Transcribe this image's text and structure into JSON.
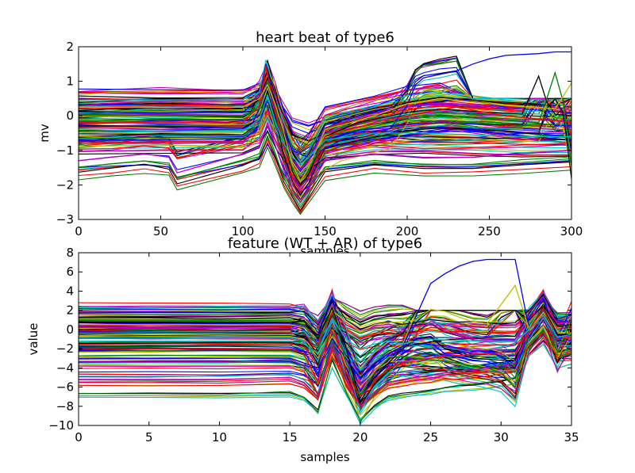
{
  "chart_data": [
    {
      "type": "line",
      "title": "heart beat of type6",
      "xlabel": "samples",
      "ylabel": "mv",
      "xlim": [
        0,
        300
      ],
      "ylim": [
        -3,
        2
      ],
      "xticks": [
        "0",
        "50",
        "100",
        "150",
        "200",
        "250",
        "300"
      ],
      "yticks": [
        "−3",
        "−2",
        "−1",
        "0",
        "1",
        "2"
      ],
      "grid": false,
      "representative_series": [
        {
          "color": "#0000ff",
          "x": [
            0,
            50,
            100,
            105,
            110,
            115,
            120,
            130,
            140,
            160,
            190,
            200,
            205,
            210,
            220,
            230,
            240,
            250,
            260,
            280,
            290,
            300
          ],
          "y": [
            -0.3,
            -0.3,
            -0.35,
            -0.3,
            0.2,
            0.9,
            0.1,
            -1.0,
            -1.2,
            -0.7,
            -0.35,
            0.3,
            0.9,
            1.1,
            1.2,
            1.3,
            1.5,
            1.65,
            1.75,
            1.8,
            1.85,
            1.85
          ]
        },
        {
          "color": "#000000",
          "x": [
            0,
            20,
            50,
            90,
            105,
            110,
            115,
            120,
            125,
            130,
            135,
            140,
            150,
            170,
            200,
            220,
            250,
            270,
            275,
            280,
            285,
            290,
            300
          ],
          "y": [
            0.15,
            0.2,
            0.25,
            0.2,
            0.25,
            0.5,
            1.1,
            0.4,
            -0.6,
            -1.6,
            -2.0,
            -1.7,
            -0.6,
            -0.2,
            0.1,
            0.2,
            0.1,
            0.05,
            0.6,
            1.15,
            0.4,
            0.05,
            0.0
          ]
        },
        {
          "color": "#008000",
          "x": [
            0,
            50,
            100,
            110,
            115,
            120,
            125,
            130,
            135,
            140,
            150,
            180,
            200,
            220,
            250,
            280,
            285,
            290,
            295,
            300
          ],
          "y": [
            0.05,
            0.0,
            0.0,
            0.2,
            1.0,
            0.2,
            -0.8,
            -1.5,
            -1.9,
            -1.6,
            -0.6,
            -0.3,
            -0.1,
            0.0,
            -0.1,
            -0.2,
            0.5,
            1.25,
            0.4,
            -1.45
          ]
        },
        {
          "color": "#ff0000",
          "x": [
            0,
            50,
            100,
            110,
            114,
            118,
            125,
            130,
            135,
            140,
            150,
            180,
            210,
            230,
            260,
            300
          ],
          "y": [
            -0.2,
            -0.2,
            -0.2,
            0.3,
            1.45,
            0.5,
            -0.9,
            -1.8,
            -2.2,
            -1.8,
            -0.6,
            -0.2,
            0.1,
            0.25,
            0.0,
            -0.2
          ]
        },
        {
          "color": "#00bfbf",
          "x": [
            0,
            50,
            100,
            110,
            115,
            120,
            125,
            130,
            135,
            140,
            150,
            180,
            210,
            240,
            270,
            300
          ],
          "y": [
            -0.5,
            -0.45,
            -0.45,
            -0.1,
            0.6,
            -0.2,
            -0.8,
            -1.2,
            -1.4,
            -1.2,
            -0.7,
            -0.5,
            -0.5,
            -0.55,
            -0.6,
            -0.6
          ]
        },
        {
          "color": "#bf00bf",
          "x": [
            0,
            20,
            40,
            55,
            60,
            100,
            110,
            115,
            120,
            125,
            130,
            135,
            140,
            150,
            180,
            210,
            240,
            270,
            300
          ],
          "y": [
            -1.3,
            -1.2,
            -1.1,
            -1.2,
            -1.65,
            -1.1,
            -0.9,
            -0.2,
            -0.9,
            -1.6,
            -2.1,
            -2.5,
            -2.1,
            -1.3,
            -1.1,
            -1.2,
            -1.2,
            -1.1,
            -1.0
          ]
        },
        {
          "color": "#bfbf00",
          "x": [
            0,
            50,
            100,
            110,
            115,
            120,
            125,
            130,
            135,
            140,
            150,
            180,
            200,
            220,
            240,
            260,
            290,
            300
          ],
          "y": [
            0.25,
            0.25,
            0.25,
            0.5,
            0.9,
            0.3,
            -0.5,
            -1.4,
            -1.9,
            -1.5,
            -0.4,
            0.0,
            0.35,
            0.5,
            0.4,
            0.3,
            0.2,
            0.95
          ]
        }
      ]
    },
    {
      "type": "line",
      "title": "feature (WT + AR) of type6",
      "xlabel": "samples",
      "ylabel": "value",
      "xlim": [
        0,
        35
      ],
      "ylim": [
        -10,
        8
      ],
      "xticks": [
        "0",
        "5",
        "10",
        "15",
        "20",
        "25",
        "30",
        "35"
      ],
      "yticks": [
        "−10",
        "−8",
        "−6",
        "−4",
        "−2",
        "0",
        "2",
        "4",
        "6",
        "8"
      ],
      "grid": false,
      "representative_series": [
        {
          "color": "#0000ff",
          "x": [
            0,
            5,
            10,
            15,
            16,
            17,
            18,
            19,
            20,
            21,
            22,
            23,
            24,
            25,
            26,
            27,
            28,
            29,
            30,
            31,
            32,
            33,
            34,
            35
          ],
          "y": [
            -3.0,
            -3.0,
            -3.0,
            -3.0,
            -3.5,
            -4.0,
            -1.0,
            -3.0,
            -5.0,
            -3.5,
            -2.5,
            -1.8,
            1.5,
            4.8,
            5.8,
            6.6,
            7.1,
            7.3,
            7.3,
            7.3,
            0.0,
            1.9,
            -0.6,
            -0.6
          ]
        },
        {
          "color": "#bfbf00",
          "x": [
            0,
            5,
            10,
            15,
            16,
            17,
            18,
            19,
            20,
            21,
            22,
            23,
            24,
            25,
            26,
            27,
            28,
            29,
            30,
            31,
            32,
            33,
            34,
            35
          ],
          "y": [
            0.5,
            0.5,
            0.5,
            0.5,
            0.2,
            -1.0,
            2.0,
            0.8,
            -0.2,
            0.5,
            0.7,
            0.8,
            1.0,
            2.1,
            1.9,
            1.3,
            0.8,
            0.6,
            2.6,
            4.6,
            0.0,
            1.8,
            -0.4,
            -0.4
          ]
        },
        {
          "color": "#008000",
          "x": [
            0,
            5,
            10,
            15,
            16,
            17,
            18,
            19,
            20,
            21,
            22,
            23,
            24,
            25,
            26,
            27,
            28,
            29,
            30,
            31,
            32,
            33,
            34,
            35
          ],
          "y": [
            0.9,
            0.9,
            0.9,
            0.9,
            0.5,
            -1.8,
            2.3,
            -3.5,
            -6.8,
            -4.5,
            -3.0,
            -2.8,
            -3.0,
            -3.2,
            -3.3,
            -3.5,
            -3.8,
            -4.0,
            -4.5,
            -6.0,
            0.0,
            2.4,
            -2.4,
            1.0
          ]
        },
        {
          "color": "#000000",
          "x": [
            0,
            5,
            10,
            15,
            16,
            17,
            18,
            19,
            20,
            21,
            22,
            23,
            24,
            25,
            26,
            27,
            28,
            29,
            30,
            31,
            32,
            33,
            34,
            35
          ],
          "y": [
            0.7,
            0.7,
            0.7,
            0.7,
            0.9,
            -1.0,
            2.3,
            -2.0,
            -7.5,
            -5.0,
            -3.5,
            -2.0,
            -1.0,
            -0.8,
            -2.0,
            -2.5,
            -3.0,
            -3.1,
            -3.2,
            -3.2,
            0.0,
            2.3,
            -0.5,
            -0.5
          ]
        },
        {
          "color": "#ff0000",
          "x": [
            0,
            5,
            10,
            15,
            16,
            17,
            18,
            19,
            20,
            21,
            22,
            23,
            24,
            25,
            26,
            27,
            28,
            29,
            30,
            31,
            32,
            33,
            34,
            35
          ],
          "y": [
            -2.0,
            -2.0,
            -2.0,
            -2.0,
            -2.5,
            -5.5,
            0.5,
            -4.5,
            -7.0,
            -5.5,
            -4.0,
            -3.5,
            -3.3,
            -3.0,
            -2.8,
            -2.7,
            -2.6,
            -2.5,
            -2.4,
            -2.4,
            0.0,
            2.2,
            -1.0,
            -0.8
          ]
        },
        {
          "color": "#bf00bf",
          "x": [
            0,
            5,
            10,
            15,
            16,
            17,
            18,
            19,
            20,
            21,
            22,
            23,
            24,
            25,
            26,
            27,
            28,
            29,
            30,
            31,
            32,
            33,
            34,
            35
          ],
          "y": [
            -5.2,
            -5.2,
            -5.2,
            -5.0,
            -5.5,
            -7.0,
            -1.5,
            -5.0,
            -8.0,
            -6.5,
            -5.5,
            -5.2,
            -5.0,
            -4.8,
            -4.5,
            -4.3,
            -4.2,
            -4.0,
            -3.8,
            -3.5,
            0.0,
            1.5,
            -1.5,
            -1.0
          ]
        },
        {
          "color": "#00bfbf",
          "x": [
            0,
            5,
            10,
            15,
            16,
            17,
            18,
            19,
            20,
            21,
            22,
            23,
            24,
            25,
            26,
            27,
            28,
            29,
            30,
            31,
            32,
            33,
            34,
            35
          ],
          "y": [
            -1.2,
            -1.2,
            -1.2,
            -1.2,
            -1.5,
            -2.5,
            1.2,
            -1.0,
            -2.0,
            -1.5,
            -1.2,
            -1.5,
            -1.2,
            -1.0,
            -1.1,
            -1.2,
            -1.2,
            -1.3,
            -1.3,
            -1.3,
            0.0,
            1.5,
            -0.8,
            -0.5
          ]
        }
      ]
    }
  ],
  "palette": [
    "#0000ff",
    "#008000",
    "#ff0000",
    "#00bfbf",
    "#bf00bf",
    "#bfbf00",
    "#000000"
  ]
}
